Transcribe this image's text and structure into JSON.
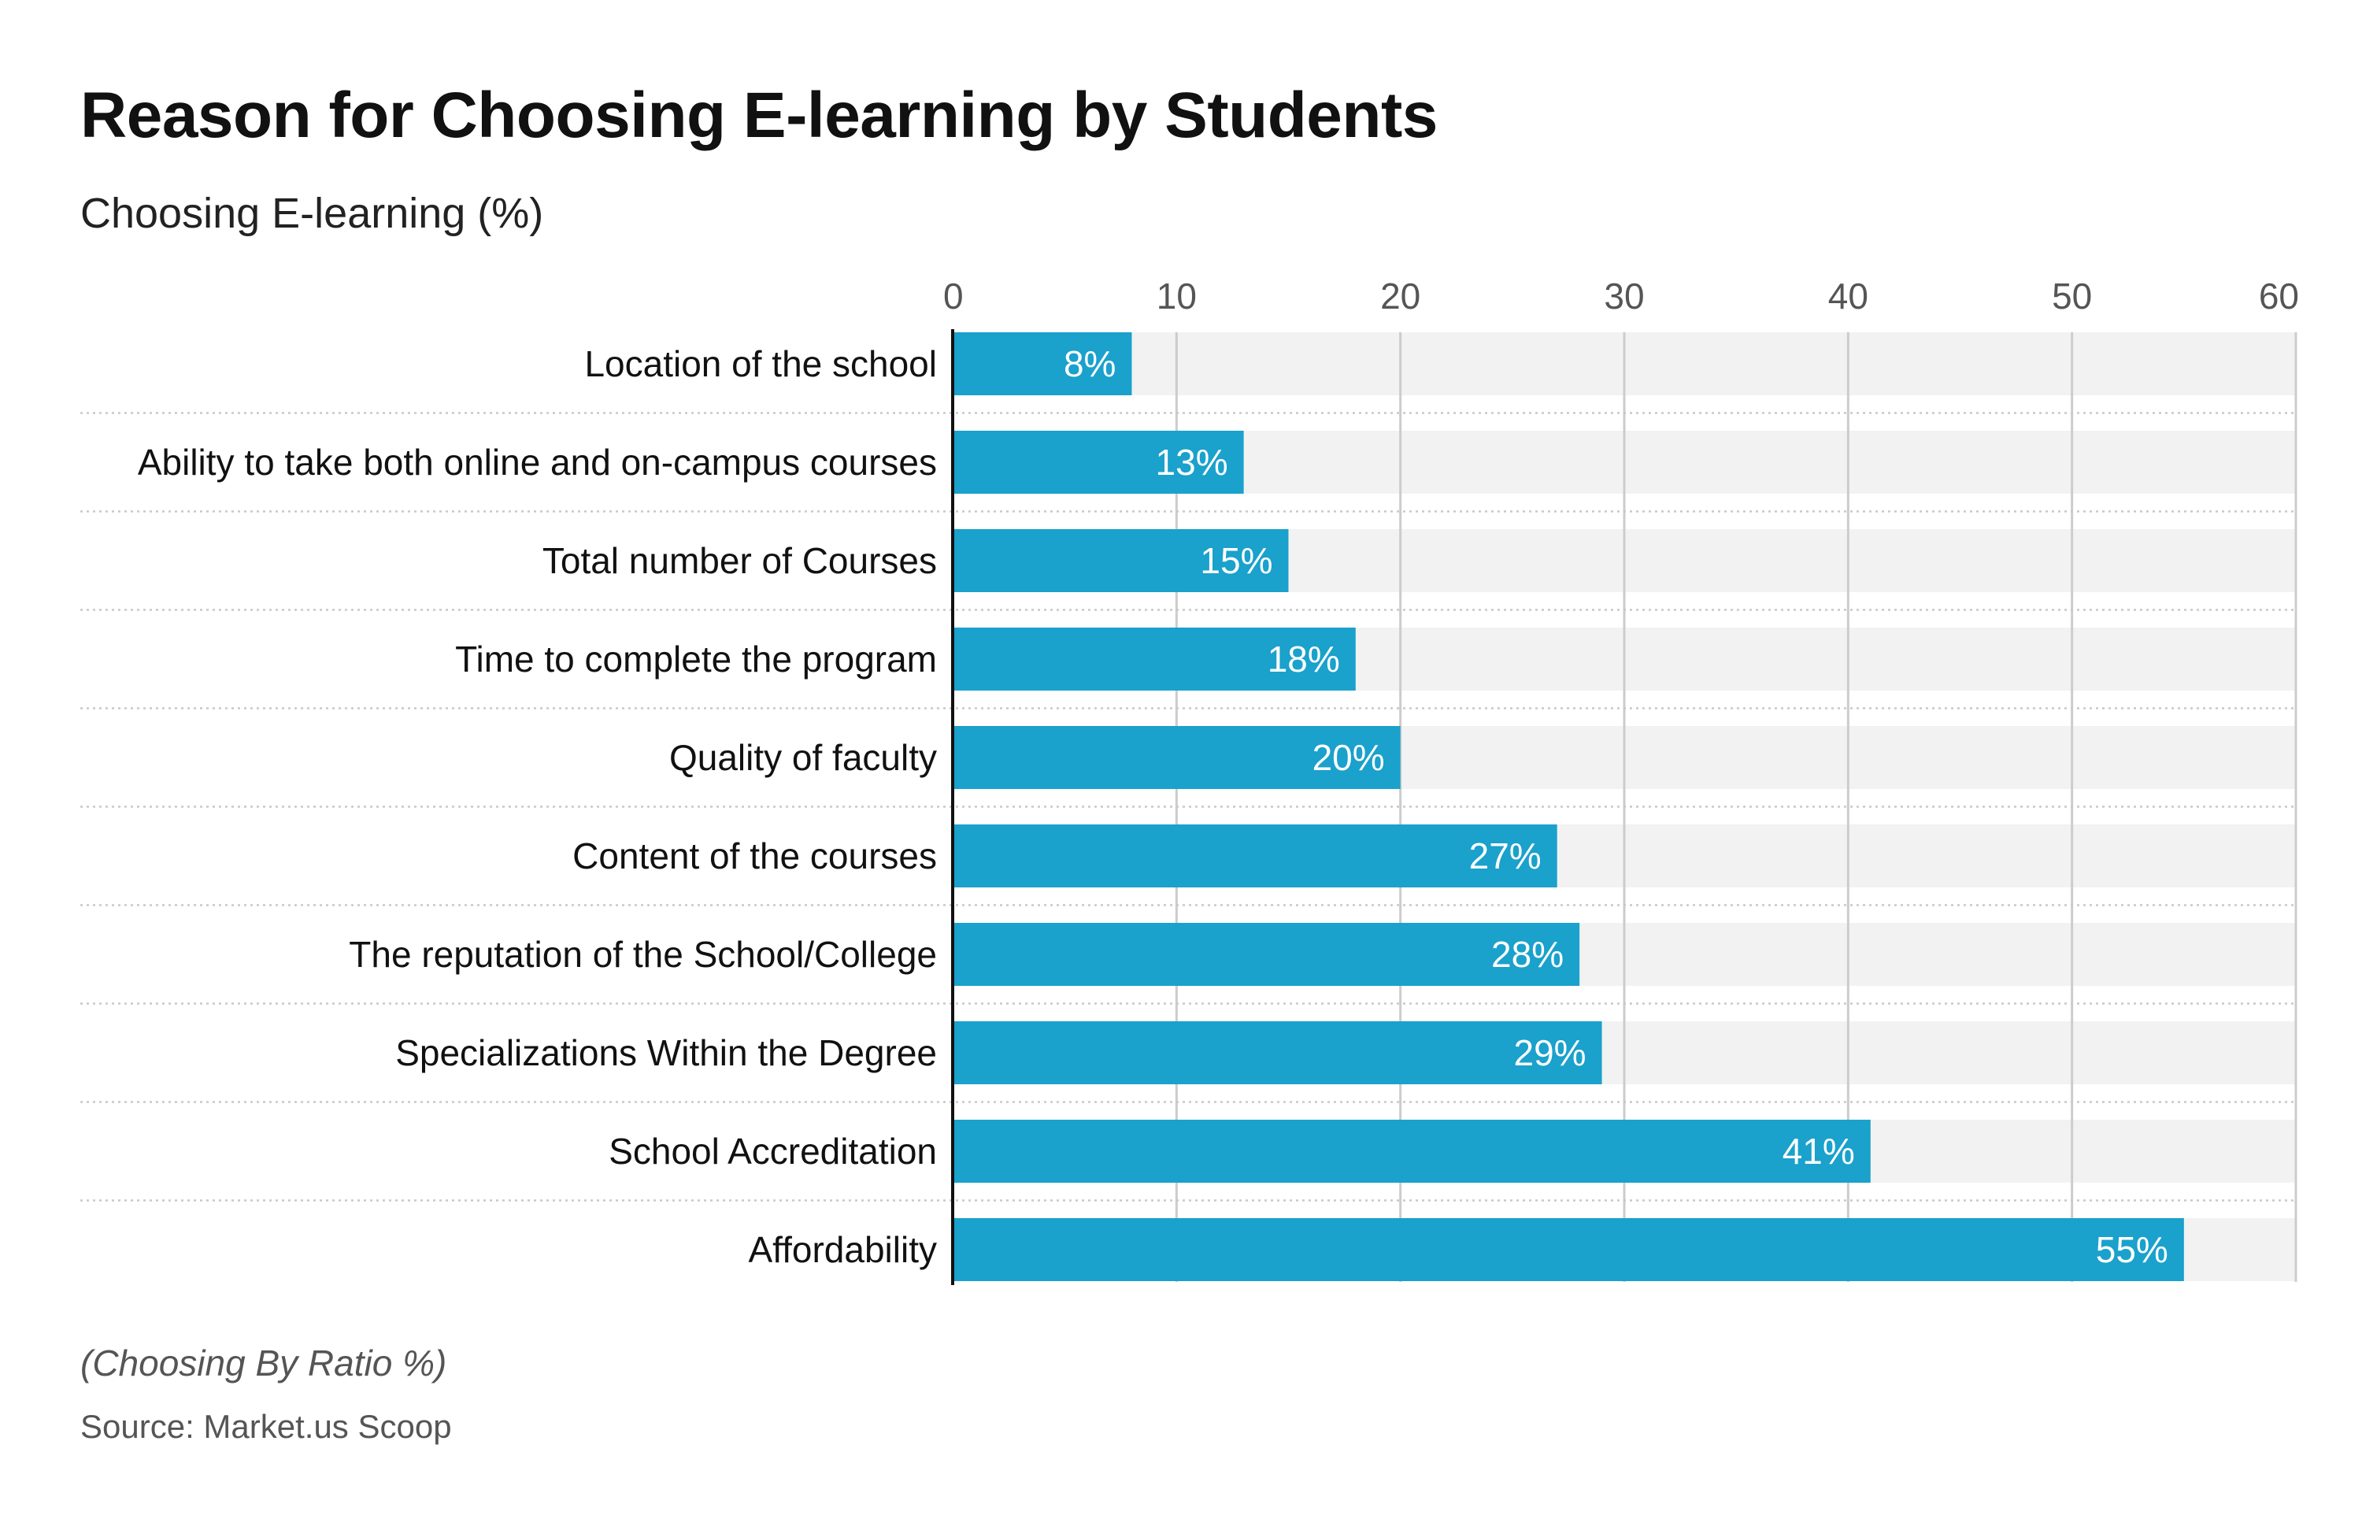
{
  "title": "Reason for Choosing E-learning by Students",
  "subtitle": "Choosing E-learning (%)",
  "footer": {
    "note": "(Choosing By Ratio %)",
    "source": "Source: Market.us Scoop"
  },
  "colors": {
    "bar": "#1aa1cc",
    "track": "#f2f2f2",
    "grid": "#cccccc",
    "axis": "#111111",
    "separator": "#c8c8c8"
  },
  "chart_data": {
    "type": "bar",
    "orientation": "horizontal",
    "categories": [
      "Location of the school",
      "Ability to take both online and on-campus courses",
      "Total number of Courses",
      "Time to complete the program",
      "Quality of faculty",
      "Content of the courses",
      "The reputation of the School/College",
      "Specializations Within the Degree",
      "School Accreditation",
      "Affordability"
    ],
    "values": [
      8,
      13,
      15,
      18,
      20,
      27,
      28,
      29,
      41,
      55
    ],
    "data_labels": [
      "8%",
      "13%",
      "15%",
      "18%",
      "20%",
      "27%",
      "28%",
      "29%",
      "41%",
      "55%"
    ],
    "xlim": [
      0,
      60
    ],
    "xticks": [
      0,
      10,
      20,
      30,
      40,
      50,
      60
    ],
    "tick_position": "top",
    "grid": true
  }
}
